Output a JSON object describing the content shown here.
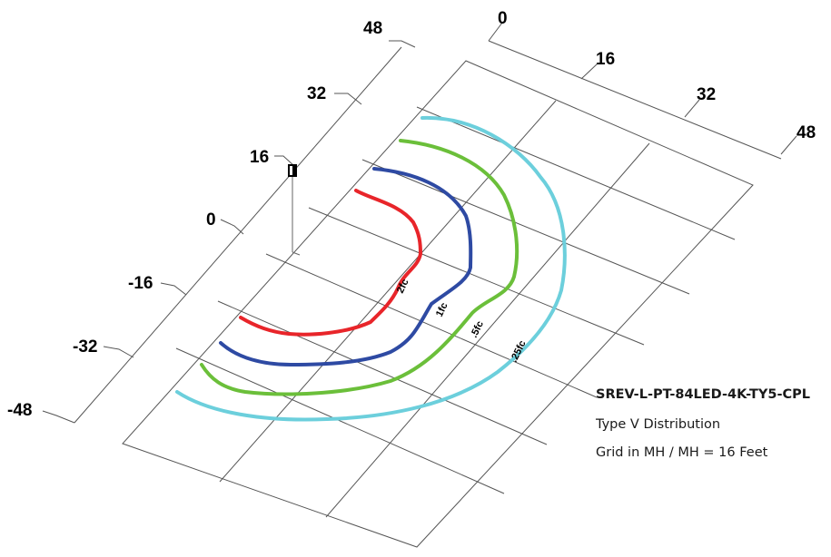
{
  "fixture": {
    "title": "SREV-L-PT-84LED-4K-TY5-CPL",
    "distribution": "Type V Distribution",
    "grid_note": "Grid in MH / MH = 16 Feet"
  },
  "axes": {
    "left_ticks": [
      "48",
      "32",
      "16",
      "0",
      "-16",
      "-32",
      "-48"
    ],
    "top_ticks": [
      "0",
      "16",
      "32",
      "48"
    ]
  },
  "contours": [
    {
      "label": "2fc",
      "color": "#e8252a"
    },
    {
      "label": "1fc",
      "color": "#2e4aa3"
    },
    {
      "label": ".5fc",
      "color": "#6bbf3a"
    },
    {
      "label": ".25fc",
      "color": "#6ccfdc"
    }
  ],
  "colors": {
    "grid": "#555555",
    "pole": "#000000"
  }
}
